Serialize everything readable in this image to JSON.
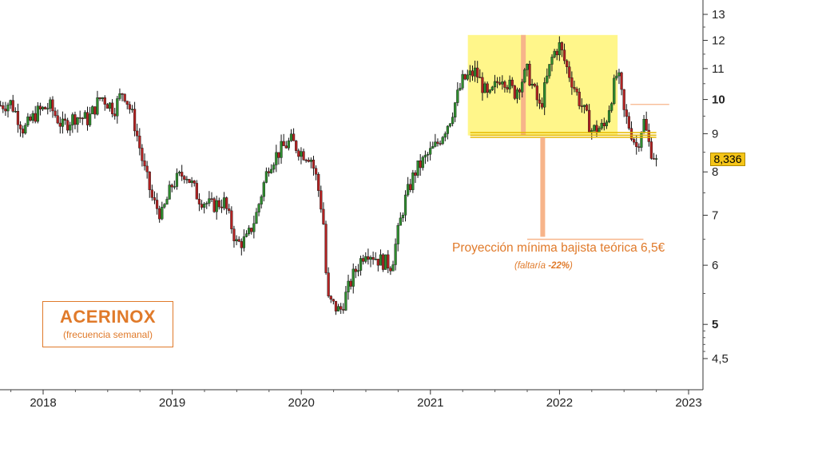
{
  "chart_data": {
    "type": "candlestick",
    "title": "ACERINOX",
    "subtitle": "(frecuencia semanal)",
    "y_scale": "log",
    "y_ticks": [
      4.5,
      5,
      6,
      7,
      8,
      9,
      10,
      11,
      12,
      13
    ],
    "y_tick_labels": [
      "4,5",
      "5",
      "6",
      "7",
      "8",
      "9",
      "10",
      "11",
      "12",
      "13"
    ],
    "x_ticks": [
      2018,
      2019,
      2020,
      2021,
      2022,
      2023
    ],
    "x_tick_labels": [
      "2018",
      "2019",
      "2020",
      "2021",
      "2022",
      "2023"
    ],
    "last_price": 8.336,
    "last_price_label": "8,336",
    "colors": {
      "up": "#2e8b2e",
      "down": "#b22222",
      "zone": "#fff68a",
      "projection": "#f7b48a",
      "accent": "#e07a2a",
      "badge": "#f5c518"
    },
    "series": [
      {
        "x": [
          2017.65,
          2017.75,
          2017.85,
          2017.95,
          2018.05,
          2018.15,
          2018.25,
          2018.35,
          2018.45,
          2018.55,
          2018.62,
          2018.7,
          2018.78,
          2018.85,
          2018.92,
          2019.0,
          2019.1,
          2019.2,
          2019.3,
          2019.4,
          2019.5,
          2019.58,
          2019.65,
          2019.75,
          2019.85,
          2019.92,
          2020.0,
          2020.07,
          2020.12,
          2020.17,
          2020.2,
          2020.3,
          2020.4,
          2020.5,
          2020.6,
          2020.7,
          2020.8,
          2020.88,
          2020.95,
          2021.05,
          2021.15,
          2021.25,
          2021.35,
          2021.45,
          2021.55,
          2021.65,
          2021.75,
          2021.85,
          2021.95,
          2022.0,
          2022.05,
          2022.15,
          2022.25,
          2022.35,
          2022.45,
          2022.5,
          2022.6,
          2022.65,
          2022.7,
          2022.75
        ],
        "y": [
          9.8,
          9.9,
          9.1,
          9.6,
          9.8,
          9.2,
          9.5,
          9.4,
          10.1,
          9.7,
          10.3,
          9.4,
          8.1,
          7.3,
          7.0,
          7.7,
          8.0,
          7.4,
          7.2,
          7.3,
          6.4,
          6.5,
          7.0,
          8.2,
          8.6,
          8.8,
          8.5,
          8.4,
          7.8,
          6.9,
          5.4,
          5.2,
          5.8,
          6.3,
          6.1,
          6.0,
          7.3,
          8.0,
          8.3,
          8.7,
          9.4,
          10.6,
          10.9,
          10.0,
          10.8,
          10.2,
          10.9,
          9.7,
          11.5,
          11.8,
          11.1,
          10.0,
          9.1,
          9.2,
          10.9,
          9.6,
          8.6,
          9.4,
          8.6,
          8.336
        ]
      }
    ],
    "annotations": {
      "zone": {
        "x_start": 2021.29,
        "x_end": 2022.45,
        "y_low": 8.95,
        "y_high": 12.2
      },
      "support_lines": [
        9.03,
        8.96,
        8.9
      ],
      "resistance_line": {
        "y": 9.85,
        "x_start": 2022.55,
        "x_end": 2022.85
      },
      "projection_bar": {
        "x": 2021.72,
        "y_low": 8.95,
        "y_high": 12.2
      },
      "projection_line": {
        "x": 2021.87,
        "y_top": 8.9,
        "y_bottom": 6.55
      },
      "projection_level": {
        "y": 6.5,
        "x_start": 2021.75,
        "x_end": 2022.65
      },
      "projection_text": "Proyección mínima bajista teórica 6,5€",
      "projection_note_prefix": "(faltaría ",
      "projection_note_value": "-22%",
      "projection_note_suffix": ")"
    }
  }
}
